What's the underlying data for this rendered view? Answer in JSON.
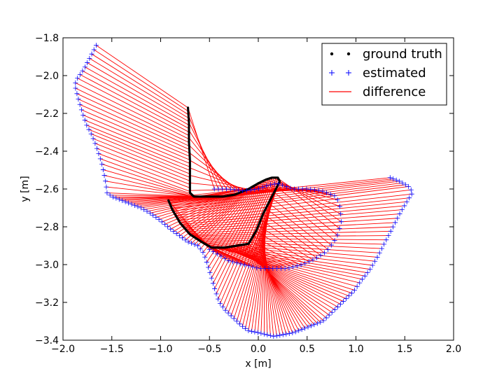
{
  "chart_data": {
    "type": "scatter",
    "xlabel": "x [m]",
    "ylabel": "y [m]",
    "xlim": [
      -2.0,
      2.0
    ],
    "ylim": [
      -3.4,
      -1.8
    ],
    "xticks": [
      "−2.0",
      "−1.5",
      "−1.0",
      "−0.5",
      "0.0",
      "0.5",
      "1.0",
      "1.5",
      "2.0"
    ],
    "yticks": [
      "−1.8",
      "−2.0",
      "−2.2",
      "−2.4",
      "−2.6",
      "−2.8",
      "−3.0",
      "−3.2",
      "−3.4"
    ],
    "grid": false,
    "legend_position": "top-right",
    "legend": [
      {
        "label": "ground truth",
        "marker": "dot",
        "color": "#000000"
      },
      {
        "label": "estimated",
        "marker": "plus",
        "color": "#0000ff"
      },
      {
        "label": "difference",
        "marker": "line",
        "color": "#ff0000"
      }
    ],
    "ground_truth_path": [
      [
        -0.72,
        -2.17
      ],
      [
        -0.71,
        -2.25
      ],
      [
        -0.71,
        -2.35
      ],
      [
        -0.7,
        -2.45
      ],
      [
        -0.7,
        -2.55
      ],
      [
        -0.7,
        -2.62
      ],
      [
        -0.66,
        -2.64
      ],
      [
        -0.58,
        -2.64
      ],
      [
        -0.48,
        -2.64
      ],
      [
        -0.36,
        -2.64
      ],
      [
        -0.24,
        -2.63
      ],
      [
        -0.1,
        -2.6
      ],
      [
        0.0,
        -2.57
      ],
      [
        0.08,
        -2.55
      ],
      [
        0.14,
        -2.54
      ],
      [
        0.2,
        -2.54
      ],
      [
        0.22,
        -2.56
      ],
      [
        0.14,
        -2.64
      ],
      [
        0.05,
        -2.73
      ],
      [
        -0.02,
        -2.82
      ],
      [
        -0.1,
        -2.89
      ],
      [
        -0.22,
        -2.9
      ],
      [
        -0.34,
        -2.91
      ],
      [
        -0.48,
        -2.91
      ],
      [
        -0.58,
        -2.88
      ],
      [
        -0.7,
        -2.84
      ],
      [
        -0.8,
        -2.78
      ],
      [
        -0.88,
        -2.71
      ],
      [
        -0.92,
        -2.66
      ]
    ],
    "estimated_path": [
      [
        -1.66,
        -1.84
      ],
      [
        -1.7,
        -1.88
      ],
      [
        -1.78,
        -1.96
      ],
      [
        -1.86,
        -2.02
      ],
      [
        -1.88,
        -2.05
      ],
      [
        -1.84,
        -2.13
      ],
      [
        -1.8,
        -2.2
      ],
      [
        -1.76,
        -2.26
      ],
      [
        -1.71,
        -2.31
      ],
      [
        -1.67,
        -2.36
      ],
      [
        -1.63,
        -2.42
      ],
      [
        -1.6,
        -2.47
      ],
      [
        -1.58,
        -2.52
      ],
      [
        -1.56,
        -2.57
      ],
      [
        -1.55,
        -2.62
      ],
      [
        -1.5,
        -2.64
      ],
      [
        -1.4,
        -2.66
      ],
      [
        -1.3,
        -2.68
      ],
      [
        -1.2,
        -2.7
      ],
      [
        -1.1,
        -2.73
      ],
      [
        -1.02,
        -2.76
      ],
      [
        -0.95,
        -2.79
      ],
      [
        -0.88,
        -2.82
      ],
      [
        -0.8,
        -2.85
      ],
      [
        -0.72,
        -2.88
      ],
      [
        -0.62,
        -2.9
      ],
      [
        -0.56,
        -2.94
      ],
      [
        -0.52,
        -3.0
      ],
      [
        -0.48,
        -3.07
      ],
      [
        -0.44,
        -3.14
      ],
      [
        -0.4,
        -3.2
      ],
      [
        -0.34,
        -3.24
      ],
      [
        -0.26,
        -3.28
      ],
      [
        -0.18,
        -3.32
      ],
      [
        -0.1,
        -3.35
      ],
      [
        0.0,
        -3.36
      ],
      [
        0.08,
        -3.37
      ],
      [
        0.16,
        -3.38
      ],
      [
        0.26,
        -3.37
      ],
      [
        0.36,
        -3.36
      ],
      [
        0.46,
        -3.34
      ],
      [
        0.56,
        -3.32
      ],
      [
        0.66,
        -3.3
      ],
      [
        0.74,
        -3.26
      ],
      [
        0.82,
        -3.22
      ],
      [
        0.9,
        -3.18
      ],
      [
        0.98,
        -3.14
      ],
      [
        1.06,
        -3.08
      ],
      [
        1.14,
        -3.03
      ],
      [
        1.22,
        -2.96
      ],
      [
        1.3,
        -2.88
      ],
      [
        1.38,
        -2.8
      ],
      [
        1.46,
        -2.72
      ],
      [
        1.53,
        -2.66
      ],
      [
        1.58,
        -2.62
      ],
      [
        1.55,
        -2.59
      ],
      [
        1.45,
        -2.56
      ],
      [
        1.35,
        -2.54
      ]
    ],
    "estimated_inner_path": [
      [
        -0.45,
        -2.6
      ],
      [
        -0.3,
        -2.6
      ],
      [
        -0.15,
        -2.61
      ],
      [
        0.0,
        -2.6
      ],
      [
        0.1,
        -2.58
      ],
      [
        0.2,
        -2.57
      ],
      [
        0.35,
        -2.6
      ],
      [
        0.5,
        -2.6
      ],
      [
        0.65,
        -2.61
      ],
      [
        0.8,
        -2.64
      ],
      [
        0.84,
        -2.7
      ],
      [
        0.85,
        -2.78
      ],
      [
        0.8,
        -2.86
      ],
      [
        0.7,
        -2.93
      ],
      [
        0.58,
        -2.97
      ],
      [
        0.45,
        -3.0
      ],
      [
        0.3,
        -3.02
      ],
      [
        0.15,
        -3.02
      ],
      [
        0.0,
        -3.02
      ],
      [
        -0.15,
        -3.0
      ],
      [
        -0.3,
        -2.98
      ],
      [
        -0.4,
        -2.95
      ],
      [
        -0.5,
        -2.92
      ]
    ]
  }
}
